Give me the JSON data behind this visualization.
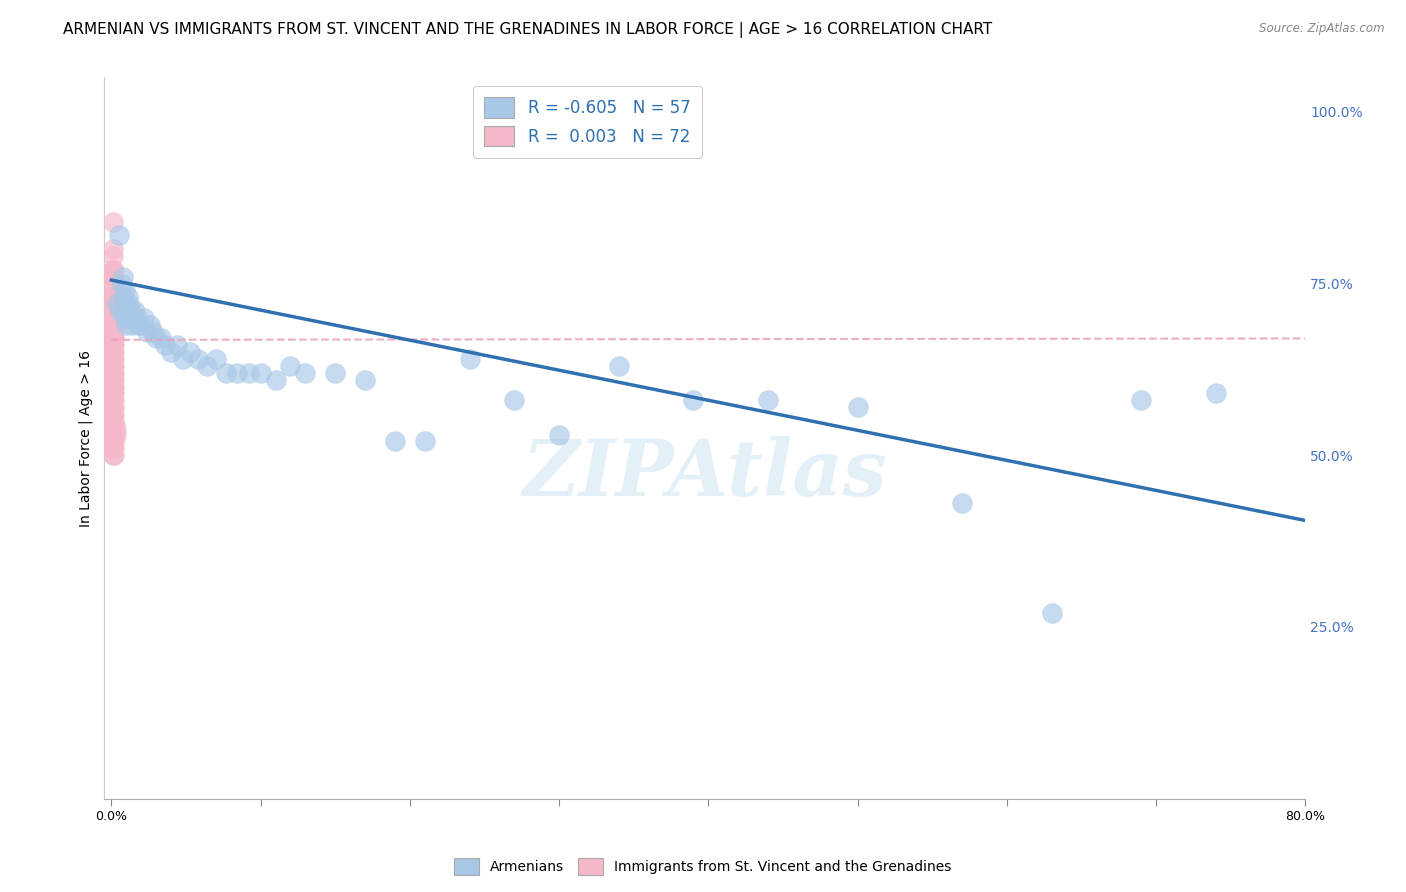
{
  "title": "ARMENIAN VS IMMIGRANTS FROM ST. VINCENT AND THE GRENADINES IN LABOR FORCE | AGE > 16 CORRELATION CHART",
  "source": "Source: ZipAtlas.com",
  "ylabel": "In Labor Force | Age > 16",
  "legend_blue_r": "-0.605",
  "legend_blue_n": "57",
  "legend_pink_r": "0.003",
  "legend_pink_n": "72",
  "legend_blue_label": "Armenians",
  "legend_pink_label": "Immigrants from St. Vincent and the Grenadines",
  "blue_color": "#a8c8e8",
  "pink_color": "#f4b8c8",
  "blue_line_color": "#3070b0",
  "pink_line_color": "#e8a0b8",
  "right_ytick_labels": [
    "100.0%",
    "75.0%",
    "50.0%",
    "25.0%"
  ],
  "right_ytick_vals": [
    1.0,
    0.75,
    0.5,
    0.25
  ],
  "watermark": "ZIPAtlas",
  "blue_scatter_x": [
    0.004,
    0.005,
    0.006,
    0.007,
    0.008,
    0.008,
    0.009,
    0.009,
    0.01,
    0.01,
    0.011,
    0.011,
    0.012,
    0.012,
    0.013,
    0.014,
    0.015,
    0.016,
    0.017,
    0.018,
    0.02,
    0.022,
    0.024,
    0.026,
    0.028,
    0.03,
    0.033,
    0.036,
    0.04,
    0.044,
    0.048,
    0.053,
    0.058,
    0.064,
    0.07,
    0.077,
    0.084,
    0.092,
    0.1,
    0.11,
    0.12,
    0.13,
    0.15,
    0.17,
    0.19,
    0.21,
    0.24,
    0.27,
    0.3,
    0.34,
    0.39,
    0.44,
    0.5,
    0.57,
    0.63,
    0.69,
    0.74
  ],
  "blue_scatter_y": [
    0.72,
    0.82,
    0.71,
    0.75,
    0.73,
    0.76,
    0.7,
    0.74,
    0.72,
    0.69,
    0.71,
    0.73,
    0.7,
    0.72,
    0.71,
    0.69,
    0.7,
    0.71,
    0.7,
    0.69,
    0.69,
    0.7,
    0.68,
    0.69,
    0.68,
    0.67,
    0.67,
    0.66,
    0.65,
    0.66,
    0.64,
    0.65,
    0.64,
    0.63,
    0.64,
    0.62,
    0.62,
    0.62,
    0.62,
    0.61,
    0.63,
    0.62,
    0.62,
    0.61,
    0.52,
    0.52,
    0.64,
    0.58,
    0.53,
    0.63,
    0.58,
    0.58,
    0.57,
    0.43,
    0.27,
    0.58,
    0.59
  ],
  "pink_scatter_x": [
    0.001,
    0.001,
    0.001,
    0.001,
    0.001,
    0.001,
    0.001,
    0.001,
    0.001,
    0.001,
    0.001,
    0.001,
    0.001,
    0.001,
    0.001,
    0.001,
    0.001,
    0.001,
    0.001,
    0.001,
    0.001,
    0.001,
    0.001,
    0.001,
    0.001,
    0.001,
    0.001,
    0.001,
    0.001,
    0.001,
    0.001,
    0.001,
    0.001,
    0.001,
    0.001,
    0.001,
    0.001,
    0.001,
    0.001,
    0.001,
    0.001,
    0.001,
    0.001,
    0.001,
    0.001,
    0.001,
    0.001,
    0.001,
    0.001,
    0.001,
    0.002,
    0.002,
    0.002,
    0.002,
    0.002,
    0.002,
    0.002,
    0.002,
    0.002,
    0.002,
    0.002,
    0.002,
    0.002,
    0.002,
    0.002,
    0.002,
    0.002,
    0.002,
    0.002,
    0.002,
    0.003,
    0.003
  ],
  "pink_scatter_y": [
    0.84,
    0.8,
    0.79,
    0.77,
    0.77,
    0.77,
    0.76,
    0.76,
    0.75,
    0.74,
    0.73,
    0.73,
    0.72,
    0.72,
    0.71,
    0.71,
    0.71,
    0.7,
    0.7,
    0.69,
    0.69,
    0.68,
    0.68,
    0.67,
    0.67,
    0.66,
    0.66,
    0.65,
    0.65,
    0.64,
    0.64,
    0.63,
    0.63,
    0.62,
    0.62,
    0.61,
    0.61,
    0.6,
    0.6,
    0.59,
    0.59,
    0.58,
    0.57,
    0.56,
    0.55,
    0.54,
    0.53,
    0.52,
    0.51,
    0.5,
    0.69,
    0.68,
    0.67,
    0.66,
    0.65,
    0.64,
    0.63,
    0.62,
    0.61,
    0.6,
    0.59,
    0.58,
    0.57,
    0.56,
    0.55,
    0.54,
    0.53,
    0.52,
    0.51,
    0.5,
    0.54,
    0.53
  ],
  "blue_line_x": [
    0.0,
    0.8
  ],
  "blue_line_y": [
    0.755,
    0.405
  ],
  "pink_line_x": [
    0.0,
    0.8
  ],
  "pink_line_y": [
    0.668,
    0.67
  ],
  "xlim": [
    -0.005,
    0.8
  ],
  "ylim": [
    0.0,
    1.05
  ],
  "xtick_positions": [
    0.0,
    0.1,
    0.2,
    0.3,
    0.4,
    0.5,
    0.6,
    0.7,
    0.8
  ],
  "background_color": "#ffffff",
  "grid_color": "#d0d0d0",
  "title_fontsize": 11,
  "axis_label_fontsize": 10,
  "tick_fontsize": 9,
  "right_tick_color": "#4472c4"
}
